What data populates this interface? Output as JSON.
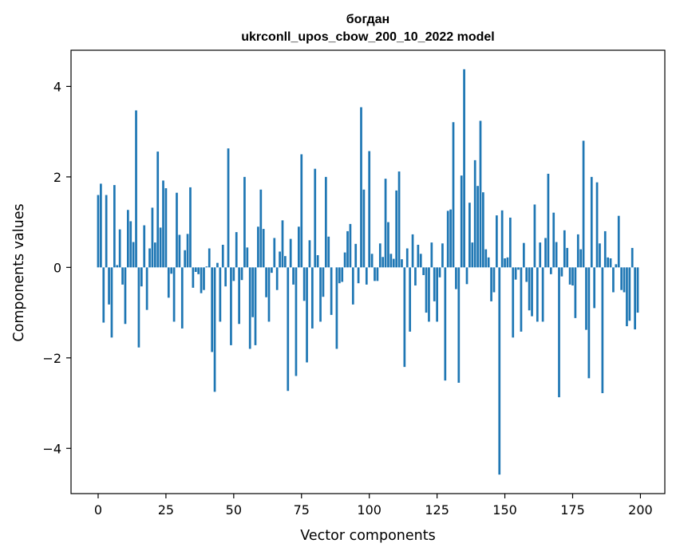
{
  "chart_data": {
    "type": "bar",
    "title": [
      "богдан",
      "ukrconll_upos_cbow_200_10_2022 model"
    ],
    "xlabel": "Vector components",
    "ylabel": "Components values",
    "xlim": [
      -10,
      209
    ],
    "ylim": [
      -5.0,
      4.8
    ],
    "xticks": [
      0,
      25,
      50,
      75,
      100,
      125,
      150,
      175,
      200
    ],
    "yticks": [
      -4,
      -2,
      0,
      2,
      4
    ],
    "ytick_labels": [
      "−4",
      "−2",
      "0",
      "2",
      "4"
    ],
    "legend": "none",
    "grid": false,
    "colors": {
      "bar": "#1f77b4"
    },
    "x": [
      0,
      1,
      2,
      3,
      4,
      5,
      6,
      7,
      8,
      9,
      10,
      11,
      12,
      13,
      14,
      15,
      16,
      17,
      18,
      19,
      20,
      21,
      22,
      23,
      24,
      25,
      26,
      27,
      28,
      29,
      30,
      31,
      32,
      33,
      34,
      35,
      36,
      37,
      38,
      39,
      40,
      41,
      42,
      43,
      44,
      45,
      46,
      47,
      48,
      49,
      50,
      51,
      52,
      53,
      54,
      55,
      56,
      57,
      58,
      59,
      60,
      61,
      62,
      63,
      64,
      65,
      66,
      67,
      68,
      69,
      70,
      71,
      72,
      73,
      74,
      75,
      76,
      77,
      78,
      79,
      80,
      81,
      82,
      83,
      84,
      85,
      86,
      87,
      88,
      89,
      90,
      91,
      92,
      93,
      94,
      95,
      96,
      97,
      98,
      99,
      100,
      101,
      102,
      103,
      104,
      105,
      106,
      107,
      108,
      109,
      110,
      111,
      112,
      113,
      114,
      115,
      116,
      117,
      118,
      119,
      120,
      121,
      122,
      123,
      124,
      125,
      126,
      127,
      128,
      129,
      130,
      131,
      132,
      133,
      134,
      135,
      136,
      137,
      138,
      139,
      140,
      141,
      142,
      143,
      144,
      145,
      146,
      147,
      148,
      149,
      150,
      151,
      152,
      153,
      154,
      155,
      156,
      157,
      158,
      159,
      160,
      161,
      162,
      163,
      164,
      165,
      166,
      167,
      168,
      169,
      170,
      171,
      172,
      173,
      174,
      175,
      176,
      177,
      178,
      179,
      180,
      181,
      182,
      183,
      184,
      185,
      186,
      187,
      188,
      189,
      190,
      191,
      192,
      193,
      194,
      195,
      196,
      197,
      198,
      199
    ],
    "values": [
      1.6,
      1.85,
      -1.22,
      1.6,
      -0.82,
      -1.55,
      1.82,
      0.05,
      0.84,
      -0.38,
      -1.25,
      1.27,
      1.02,
      0.56,
      3.47,
      -1.77,
      -0.42,
      0.93,
      -0.94,
      0.42,
      1.32,
      0.55,
      2.56,
      0.88,
      1.92,
      1.75,
      -0.67,
      -0.14,
      -1.2,
      1.65,
      0.72,
      -1.35,
      0.38,
      0.74,
      1.77,
      -0.45,
      -0.1,
      -0.15,
      -0.57,
      -0.5,
      0.02,
      0.42,
      -1.87,
      -2.75,
      0.1,
      -1.2,
      0.5,
      -0.42,
      2.63,
      -1.72,
      -0.3,
      0.78,
      -1.25,
      -0.28,
      2.0,
      0.44,
      -1.8,
      -1.1,
      -1.72,
      0.9,
      1.72,
      0.85,
      -0.66,
      -1.2,
      -0.12,
      0.65,
      -0.5,
      0.35,
      1.04,
      0.25,
      -2.73,
      0.63,
      -0.38,
      -2.4,
      0.9,
      2.5,
      -0.74,
      -2.1,
      0.6,
      -1.35,
      2.18,
      0.27,
      -1.2,
      -0.65,
      2.0,
      0.68,
      -1.05,
      0.0,
      -1.8,
      -0.35,
      -0.32,
      0.33,
      0.8,
      0.96,
      -0.82,
      0.52,
      -0.35,
      3.54,
      1.72,
      -0.38,
      2.57,
      0.3,
      -0.3,
      -0.3,
      0.53,
      0.23,
      1.96,
      1.0,
      0.3,
      0.19,
      1.7,
      2.12,
      0.18,
      -2.2,
      0.42,
      -1.42,
      0.73,
      -0.4,
      0.5,
      0.3,
      -0.17,
      -1.0,
      -1.2,
      0.55,
      -0.75,
      -1.2,
      -0.22,
      0.53,
      -2.5,
      1.25,
      1.28,
      3.21,
      -0.48,
      -2.55,
      2.03,
      4.38,
      -0.37,
      1.43,
      0.55,
      2.37,
      1.8,
      3.24,
      1.66,
      0.4,
      0.22,
      -0.75,
      -0.55,
      1.15,
      -4.58,
      1.26,
      0.2,
      0.22,
      1.1,
      -1.55,
      -0.27,
      -0.05,
      -1.42,
      0.54,
      -0.32,
      -0.95,
      -1.08,
      1.39,
      -1.2,
      0.55,
      -1.2,
      0.65,
      2.07,
      -0.15,
      1.21,
      0.56,
      -2.87,
      -0.2,
      0.82,
      0.43,
      -0.38,
      -0.4,
      -1.12,
      0.73,
      0.4,
      2.8,
      -1.38,
      -2.45,
      2.0,
      -0.9,
      1.88,
      0.53,
      -2.78,
      0.8,
      0.22,
      0.2,
      -0.55,
      0.07,
      1.14,
      -0.5,
      -0.55,
      -1.3,
      -1.18,
      0.43,
      -1.37,
      -1.0
    ]
  }
}
